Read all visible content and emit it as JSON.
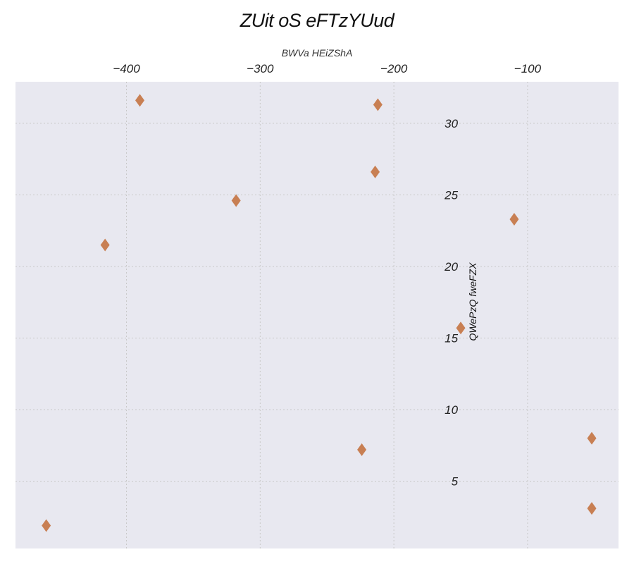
{
  "chart_data": {
    "type": "scatter",
    "title": "ZUit oS eFTzYUud",
    "xlabel": "BWVa HEiZShA",
    "ylabel": "QWePzQ fweFZX",
    "xlim": [
      -483,
      -32
    ],
    "ylim": [
      0.3,
      32.9
    ],
    "x_ticks": [
      -400,
      -300,
      -200,
      -100
    ],
    "x_tick_labels": [
      "−400",
      "−300",
      "−200",
      "−100"
    ],
    "y_ticks": [
      5,
      10,
      15,
      20,
      25,
      30
    ],
    "y_tick_labels": [
      "5",
      "10",
      "15",
      "20",
      "25",
      "30"
    ],
    "x_axis_position": "top",
    "y_axis_position": "inside, at x = -150",
    "grid": true,
    "marker": "diamond",
    "colors": {
      "background": "#e8e8f0",
      "grid": "#c8c8c8",
      "marker": "#c6794a"
    },
    "points": [
      {
        "x": -390,
        "y": 31.6
      },
      {
        "x": -212,
        "y": 31.3
      },
      {
        "x": -214,
        "y": 26.6
      },
      {
        "x": -318,
        "y": 24.6
      },
      {
        "x": -110,
        "y": 23.3
      },
      {
        "x": -416,
        "y": 21.5
      },
      {
        "x": -150,
        "y": 15.7
      },
      {
        "x": -52,
        "y": 8.0
      },
      {
        "x": -224,
        "y": 7.2
      },
      {
        "x": -52,
        "y": 3.1
      },
      {
        "x": -460,
        "y": 1.9
      }
    ]
  }
}
